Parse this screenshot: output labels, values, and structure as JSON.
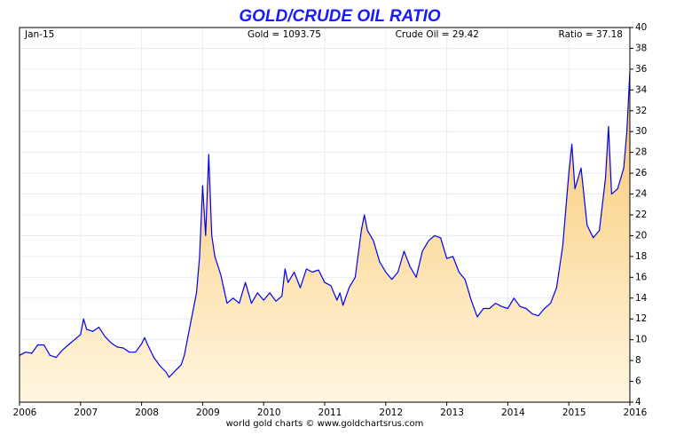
{
  "chart_data": {
    "type": "area-line",
    "title": "GOLD/CRUDE OIL RATIO",
    "annotations": [
      "Jan-15",
      "Gold = 1093.75",
      "Crude Oil = 29.42",
      "Ratio = 37.18"
    ],
    "source": "world gold charts © www.goldchartsrus.com",
    "xlim": [
      2006,
      2016
    ],
    "xticks": [
      2006,
      2007,
      2008,
      2009,
      2010,
      2011,
      2012,
      2013,
      2014,
      2015,
      2016
    ],
    "ylim": [
      4,
      40
    ],
    "yticks": [
      4,
      6,
      8,
      10,
      12,
      14,
      16,
      18,
      20,
      22,
      24,
      26,
      28,
      30,
      32,
      34,
      36,
      38,
      40
    ],
    "grid": true,
    "x": [
      2006.0,
      2006.1,
      2006.2,
      2006.3,
      2006.4,
      2006.5,
      2006.6,
      2006.7,
      2006.8,
      2006.9,
      2007.0,
      2007.05,
      2007.1,
      2007.2,
      2007.3,
      2007.4,
      2007.5,
      2007.6,
      2007.7,
      2007.8,
      2007.9,
      2008.0,
      2008.05,
      2008.1,
      2008.2,
      2008.3,
      2008.4,
      2008.45,
      2008.55,
      2008.65,
      2008.7,
      2008.8,
      2008.9,
      2008.95,
      2009.0,
      2009.05,
      2009.1,
      2009.15,
      2009.2,
      2009.3,
      2009.4,
      2009.5,
      2009.6,
      2009.7,
      2009.8,
      2009.9,
      2010.0,
      2010.1,
      2010.2,
      2010.3,
      2010.35,
      2010.4,
      2010.5,
      2010.6,
      2010.7,
      2010.8,
      2010.9,
      2011.0,
      2011.1,
      2011.2,
      2011.25,
      2011.3,
      2011.4,
      2011.5,
      2011.6,
      2011.65,
      2011.7,
      2011.8,
      2011.9,
      2012.0,
      2012.1,
      2012.2,
      2012.3,
      2012.4,
      2012.5,
      2012.6,
      2012.7,
      2012.8,
      2012.9,
      2013.0,
      2013.1,
      2013.2,
      2013.3,
      2013.4,
      2013.5,
      2013.6,
      2013.7,
      2013.8,
      2013.9,
      2014.0,
      2014.1,
      2014.2,
      2014.3,
      2014.4,
      2014.5,
      2014.6,
      2014.7,
      2014.8,
      2014.9,
      2015.0,
      2015.05,
      2015.1,
      2015.2,
      2015.3,
      2015.4,
      2015.5,
      2015.6,
      2015.65,
      2015.7,
      2015.8,
      2015.9,
      2015.95,
      2016.0
    ],
    "series": [
      {
        "name": "Ratio",
        "color": "#0000ee",
        "fill": "#f8c56a",
        "values": [
          8.5,
          8.8,
          8.7,
          9.5,
          9.5,
          8.5,
          8.3,
          9.0,
          9.5,
          10.0,
          10.5,
          12.0,
          11.0,
          10.8,
          11.2,
          10.3,
          9.7,
          9.3,
          9.2,
          8.8,
          8.8,
          9.6,
          10.2,
          9.5,
          8.3,
          7.5,
          6.9,
          6.4,
          7.0,
          7.6,
          8.5,
          11.5,
          14.5,
          18.0,
          24.8,
          20.0,
          27.8,
          20.0,
          18.0,
          16.2,
          13.5,
          14.0,
          13.5,
          15.5,
          13.5,
          14.5,
          13.8,
          14.5,
          13.7,
          14.2,
          16.8,
          15.5,
          16.5,
          15.0,
          16.8,
          16.5,
          16.7,
          15.5,
          15.2,
          13.8,
          14.5,
          13.3,
          15.0,
          16.0,
          20.5,
          22.0,
          20.5,
          19.5,
          17.5,
          16.5,
          15.8,
          16.5,
          18.5,
          17.0,
          16.0,
          18.5,
          19.5,
          20.0,
          19.8,
          17.8,
          18.0,
          16.5,
          15.8,
          13.8,
          12.2,
          13.0,
          13.0,
          13.5,
          13.2,
          13.0,
          14.0,
          13.2,
          13.0,
          12.5,
          12.3,
          13.0,
          13.5,
          15.0,
          19.0,
          26.0,
          28.8,
          24.5,
          26.5,
          21.0,
          19.8,
          20.5,
          25.5,
          30.5,
          24.0,
          24.5,
          26.5,
          30.0,
          35.8
        ]
      }
    ]
  }
}
